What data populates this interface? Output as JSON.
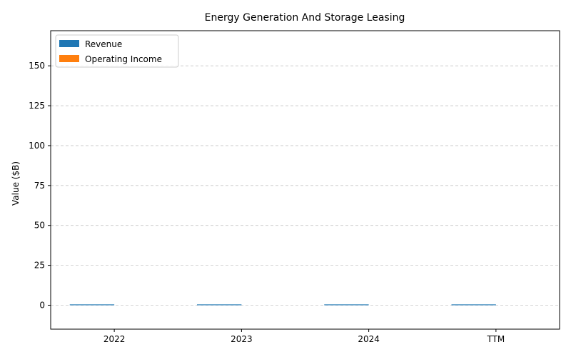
{
  "chart_data": {
    "type": "bar",
    "title": "Energy Generation And Storage Leasing",
    "xlabel": "",
    "ylabel": "Value ($B)",
    "categories": [
      "2022",
      "2023",
      "2024",
      "TTM"
    ],
    "series": [
      {
        "name": "Revenue",
        "color": "#1f77b4",
        "values": [
          0.5,
          0.5,
          0.5,
          0.5
        ]
      },
      {
        "name": "Operating Income",
        "color": "#ff7f0e",
        "values": [
          0,
          0,
          0,
          0
        ]
      }
    ],
    "ylim": [
      -15,
      172
    ],
    "yticks": [
      0,
      25,
      50,
      75,
      100,
      125,
      150
    ],
    "grid": "y-dashed",
    "legend_position": "top-left"
  }
}
